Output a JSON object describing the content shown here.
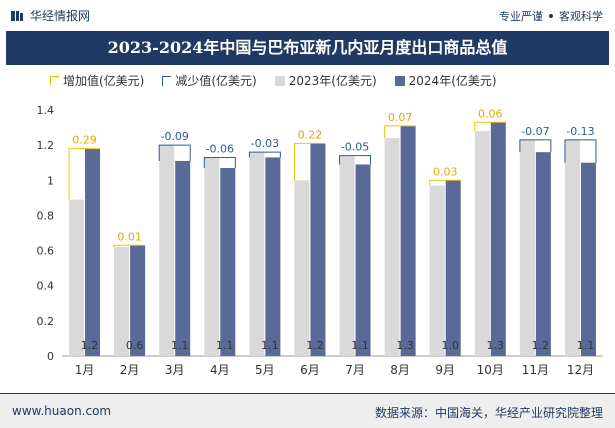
{
  "header": {
    "brand": "华经情报网",
    "tag1": "专业严谨",
    "tag2": "客观科学"
  },
  "chart_data": {
    "type": "bar",
    "title": "2023-2024年中国与巴布亚新几内亚月度出口商品总值",
    "categories": [
      "1月",
      "2月",
      "3月",
      "4月",
      "5月",
      "6月",
      "7月",
      "8月",
      "9月",
      "10月",
      "11月",
      "12月"
    ],
    "series": [
      {
        "name": "2023年(亿美元)",
        "values": [
          0.89,
          0.62,
          1.2,
          1.13,
          1.16,
          1.0,
          1.14,
          1.24,
          0.97,
          1.28,
          1.23,
          1.23
        ],
        "color": "#d9d9d9"
      },
      {
        "name": "2024年(亿美元)",
        "values": [
          1.18,
          0.63,
          1.11,
          1.07,
          1.13,
          1.21,
          1.09,
          1.31,
          1.0,
          1.33,
          1.16,
          1.1
        ],
        "color": "#5a6a98"
      }
    ],
    "bottom_labels": [
      "1.2",
      "0.6",
      "1.1",
      "1.1",
      "1.1",
      "1.2",
      "1.1",
      "1.3",
      "1.0",
      "1.3",
      "1.2",
      "1.1"
    ],
    "changes": [
      "0.29",
      "0.01",
      "-0.09",
      "-0.06",
      "-0.03",
      "0.22",
      "-0.05",
      "0.07",
      "0.03",
      "0.06",
      "-0.07",
      "-0.13"
    ],
    "legend": {
      "increase": "增加值(亿美元)",
      "decrease": "减少值(亿美元)",
      "y2023": "2023年(亿美元)",
      "y2024": "2024年(亿美元)"
    },
    "increase_color": "#f2c200",
    "decrease_color": "#2f5c93",
    "y_ticks": [
      "0",
      "0.2",
      "0.4",
      "0.6",
      "0.8",
      "1",
      "1.2",
      "1.4"
    ],
    "ylim": [
      0,
      1.4
    ],
    "grid": false,
    "legend_position": "top-left"
  },
  "footer": {
    "website": "www.huaon.com",
    "source": "数据来源：中国海关，华经产业研究院整理"
  }
}
